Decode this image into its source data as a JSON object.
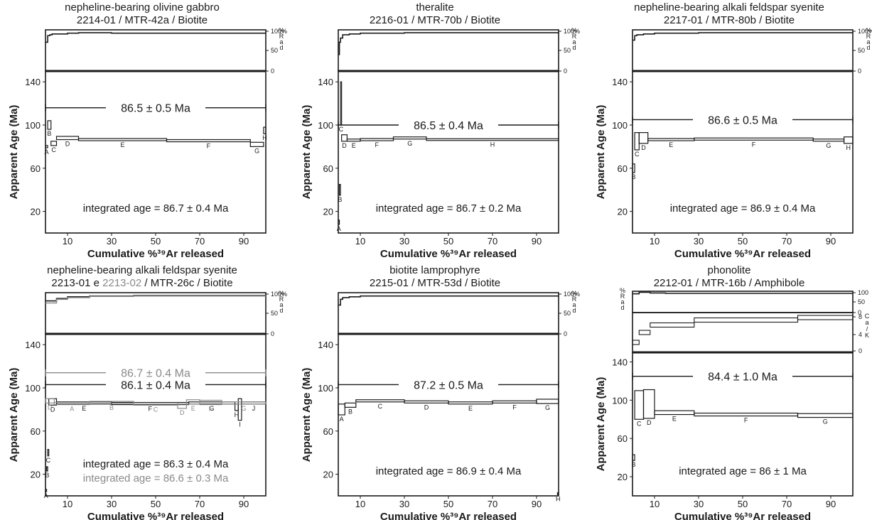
{
  "colors": {
    "primary": "#1a1a1a",
    "secondary": "#8a8a8a"
  },
  "chart_data": [
    {
      "type": "line",
      "title": "nepheline-bearing olivine gabbro",
      "subtitle": [
        "2214-01 / MTR-42a / Biotite"
      ],
      "xlabel": "Cumulative %³⁹Ar released",
      "ylabel": "Apparent Age (Ma)",
      "xlim": [
        0,
        100
      ],
      "ylim": [
        0,
        150
      ],
      "yticks": [
        20,
        60,
        100,
        140
      ],
      "xticks": [
        10,
        30,
        50,
        70,
        90
      ],
      "rad_axis": {
        "ticks": [
          "100%",
          "50",
          "0"
        ],
        "label": "%Rad",
        "letters": [
          "%",
          "R",
          "a",
          "d"
        ]
      },
      "rad_series": [
        {
          "x": [
            0,
            1,
            2,
            3,
            10,
            15,
            30,
            60,
            80,
            100
          ],
          "y": [
            70,
            86,
            88,
            90,
            92,
            93,
            92,
            92,
            92,
            92
          ]
        }
      ],
      "series": [
        {
          "name": "",
          "color": "primary",
          "steps": [
            {
              "x0": 0,
              "x1": 1,
              "age": 80,
              "err": 1,
              "label": "A"
            },
            {
              "x0": 1,
              "x1": 2.5,
              "age": 100,
              "err": 4,
              "label": "B"
            },
            {
              "x0": 2.5,
              "x1": 5,
              "age": 83,
              "err": 2,
              "label": "C"
            },
            {
              "x0": 5,
              "x1": 15,
              "age": 88,
              "err": 1.5,
              "label": "D"
            },
            {
              "x0": 15,
              "x1": 55,
              "age": 86.5,
              "err": 1,
              "label": "E"
            },
            {
              "x0": 55,
              "x1": 93,
              "age": 85.5,
              "err": 1,
              "label": "F"
            },
            {
              "x0": 93,
              "x1": 99,
              "age": 82,
              "err": 2,
              "label": "G"
            },
            {
              "x0": 99,
              "x1": 100,
              "age": 95,
              "err": 3,
              "label": "H"
            }
          ],
          "plateau": {
            "x0": 0,
            "x1": 100,
            "age": 116,
            "label": "86.5 ± 0.5  Ma"
          },
          "integrated": "integrated age = 86.7 ± 0.4  Ma"
        }
      ]
    },
    {
      "type": "line",
      "title": "theralite",
      "subtitle": [
        "2216-01 / MTR-70b / Biotite"
      ],
      "xlabel": "Cumulative %³⁹Ar released",
      "ylabel": "Apparent Age (Ma)",
      "xlim": [
        0,
        100
      ],
      "ylim": [
        0,
        150
      ],
      "yticks": [
        20,
        60,
        100,
        140
      ],
      "xticks": [
        10,
        30,
        50,
        70,
        90
      ],
      "rad_axis": {
        "ticks": [
          "100%",
          "50",
          "0"
        ],
        "label": "%Rad",
        "letters": [
          "%",
          "R",
          "a",
          "d"
        ]
      },
      "rad_series": [
        {
          "x": [
            0,
            0.5,
            1,
            2,
            5,
            10,
            30,
            60,
            100
          ],
          "y": [
            40,
            70,
            80,
            88,
            90,
            92,
            93,
            93,
            93
          ]
        }
      ],
      "series": [
        {
          "name": "",
          "color": "primary",
          "steps": [
            {
              "x0": 0,
              "x1": 0.5,
              "age": 10,
              "err": 2,
              "label": "A"
            },
            {
              "x0": 0.5,
              "x1": 1,
              "age": 40,
              "err": 5,
              "label": "B"
            },
            {
              "x0": 1,
              "x1": 1.5,
              "age": 120,
              "err": 20,
              "label": "C"
            },
            {
              "x0": 1.5,
              "x1": 4,
              "age": 88,
              "err": 3,
              "label": "D"
            },
            {
              "x0": 4,
              "x1": 10,
              "age": 86,
              "err": 1,
              "label": "E"
            },
            {
              "x0": 10,
              "x1": 25,
              "age": 86.5,
              "err": 1,
              "label": "F"
            },
            {
              "x0": 25,
              "x1": 40,
              "age": 88,
              "err": 1,
              "label": "G"
            },
            {
              "x0": 40,
              "x1": 100,
              "age": 86.5,
              "err": 0.8,
              "label": "H"
            }
          ],
          "plateau": {
            "x0": 0,
            "x1": 100,
            "age": 100,
            "label": "86.5 ± 0.4  Ma"
          },
          "integrated": "integrated age = 86.7 ± 0.2  Ma"
        }
      ]
    },
    {
      "type": "line",
      "title": "nepheline-bearing alkali feldspar syenite",
      "subtitle": [
        "2217-01 / MTR-80b / Biotite"
      ],
      "xlabel": "Cumulative %³⁹Ar released",
      "ylabel": "Apparent Age (Ma)",
      "xlim": [
        0,
        100
      ],
      "ylim": [
        0,
        150
      ],
      "yticks": [
        20,
        60,
        100,
        140
      ],
      "xticks": [
        10,
        30,
        50,
        70,
        90
      ],
      "rad_axis": {
        "ticks": [
          "100%",
          "50",
          "0"
        ],
        "label": "%Rad",
        "letters": [
          "%",
          "R",
          "a",
          "d"
        ]
      },
      "rad_series": [
        {
          "x": [
            0,
            1,
            2,
            5,
            10,
            30,
            60,
            100
          ],
          "y": [
            75,
            86,
            88,
            90,
            92,
            93,
            93,
            93
          ]
        }
      ],
      "series": [
        {
          "name": "",
          "color": "primary",
          "steps": [
            {
              "x0": 0,
              "x1": 1,
              "age": 60,
              "err": 4,
              "label": "B"
            },
            {
              "x0": 1,
              "x1": 3,
              "age": 85,
              "err": 8,
              "label": "C"
            },
            {
              "x0": 3,
              "x1": 7,
              "age": 88,
              "err": 5,
              "label": "D"
            },
            {
              "x0": 7,
              "x1": 28,
              "age": 86.5,
              "err": 1,
              "label": "E"
            },
            {
              "x0": 28,
              "x1": 82,
              "age": 87,
              "err": 1,
              "label": "F"
            },
            {
              "x0": 82,
              "x1": 96,
              "age": 86,
              "err": 1,
              "label": "G"
            },
            {
              "x0": 96,
              "x1": 100,
              "age": 86,
              "err": 3,
              "label": "H"
            }
          ],
          "plateau": {
            "x0": 0,
            "x1": 100,
            "age": 105,
            "label": "86.6 ± 0.5  Ma"
          },
          "integrated": "integrated age = 86.9 ± 0.4  Ma"
        }
      ]
    },
    {
      "type": "line",
      "title": "nepheline-bearing alkali feldspar syenite",
      "subtitle": [
        "2213-01 e ",
        "2213-02",
        " / MTR-26c / Biotite"
      ],
      "xlabel": "Cumulative %³⁹Ar released",
      "ylabel": "Apparent Age (Ma)",
      "xlim": [
        0,
        100
      ],
      "ylim": [
        0,
        150
      ],
      "yticks": [
        20,
        60,
        100,
        140
      ],
      "xticks": [
        10,
        30,
        50,
        70,
        90
      ],
      "rad_axis": {
        "ticks": [
          "100%",
          "50",
          "0"
        ],
        "label": "%Rad",
        "letters": [
          "%",
          "R",
          "a",
          "d"
        ]
      },
      "rad_series": [
        {
          "x": [
            0,
            5,
            10,
            20,
            40,
            70,
            100
          ],
          "y": [
            80,
            86,
            90,
            92,
            93,
            93,
            93
          ]
        },
        {
          "x": [
            0,
            5,
            10,
            20,
            40,
            70,
            100
          ],
          "y": [
            75,
            84,
            88,
            91,
            92,
            92,
            92
          ]
        }
      ],
      "series": [
        {
          "name": "",
          "color": "primary",
          "steps": [
            {
              "x0": 0,
              "x1": 0.5,
              "age": 5,
              "err": 1,
              "label": "A"
            },
            {
              "x0": 0.5,
              "x1": 1,
              "age": 25,
              "err": 2,
              "label": "B"
            },
            {
              "x0": 1,
              "x1": 1.5,
              "age": 40,
              "err": 3,
              "label": "C"
            },
            {
              "x0": 1.5,
              "x1": 5,
              "age": 87,
              "err": 3,
              "label": "D"
            },
            {
              "x0": 5,
              "x1": 30,
              "age": 86,
              "err": 1,
              "label": "E"
            },
            {
              "x0": 30,
              "x1": 65,
              "age": 85.5,
              "err": 1,
              "label": "F"
            },
            {
              "x0": 65,
              "x1": 86,
              "age": 86,
              "err": 1,
              "label": "G"
            },
            {
              "x0": 86,
              "x1": 87.5,
              "age": 82,
              "err": 3,
              "label": "H"
            },
            {
              "x0": 87.5,
              "x1": 89,
              "age": 80,
              "err": 10,
              "label": "I"
            },
            {
              "x0": 89,
              "x1": 100,
              "age": 86,
              "err": 1,
              "label": "J"
            }
          ],
          "plateau": {
            "x0": 0,
            "x1": 100,
            "age": 103,
            "label": "86.1 ± 0.4  Ma"
          },
          "integrated": "integrated age = 86.3 ± 0.4  Ma"
        },
        {
          "name": "",
          "color": "secondary",
          "steps": [
            {
              "x0": 0,
              "x1": 4,
              "age": 88,
              "err": 2,
              "label": "D"
            },
            {
              "x0": 4,
              "x1": 20,
              "age": 85.5,
              "err": 1,
              "label": "A"
            },
            {
              "x0": 20,
              "x1": 40,
              "age": 86.5,
              "err": 1,
              "label": "B"
            },
            {
              "x0": 40,
              "x1": 60,
              "age": 85,
              "err": 1,
              "label": "C"
            },
            {
              "x0": 60,
              "x1": 64,
              "age": 83,
              "err": 2,
              "label": "D"
            },
            {
              "x0": 64,
              "x1": 70,
              "age": 87,
              "err": 2,
              "label": "E"
            },
            {
              "x0": 70,
              "x1": 80,
              "age": 86.5,
              "err": 2,
              "label": "F"
            },
            {
              "x0": 80,
              "x1": 100,
              "age": 86,
              "err": 1,
              "label": "G"
            }
          ],
          "plateau": {
            "x0": 0,
            "x1": 100,
            "age": 114,
            "label": "86.7 ± 0.4  Ma"
          },
          "integrated": "integrated age = 86.6 ± 0.3  Ma"
        }
      ]
    },
    {
      "type": "line",
      "title": "biotite lamprophyre",
      "subtitle": [
        "2215-01 / MTR-53d / Biotite"
      ],
      "xlabel": "Cumulative %³⁹Ar released",
      "ylabel": "Apparent Age (Ma)",
      "xlim": [
        0,
        100
      ],
      "ylim": [
        0,
        150
      ],
      "yticks": [
        20,
        60,
        100,
        140
      ],
      "xticks": [
        10,
        30,
        50,
        70,
        90
      ],
      "rad_axis": {
        "ticks": [
          "100%",
          "50",
          "0"
        ],
        "label": "%Rad",
        "letters": [
          "%",
          "R",
          "a",
          "d"
        ]
      },
      "rad_series": [
        {
          "x": [
            0,
            1,
            2,
            5,
            10,
            30,
            60,
            100
          ],
          "y": [
            70,
            84,
            88,
            90,
            92,
            92,
            92,
            92
          ]
        }
      ],
      "series": [
        {
          "name": "",
          "color": "primary",
          "steps": [
            {
              "x0": 0,
              "x1": 3,
              "age": 80,
              "err": 5,
              "label": "A"
            },
            {
              "x0": 3,
              "x1": 8,
              "age": 84,
              "err": 2,
              "label": "B"
            },
            {
              "x0": 8,
              "x1": 30,
              "age": 88,
              "err": 1,
              "label": "C"
            },
            {
              "x0": 30,
              "x1": 50,
              "age": 87,
              "err": 1,
              "label": "D"
            },
            {
              "x0": 50,
              "x1": 70,
              "age": 86,
              "err": 1,
              "label": "E"
            },
            {
              "x0": 70,
              "x1": 90,
              "age": 87,
              "err": 1,
              "label": "F"
            },
            {
              "x0": 90,
              "x1": 100,
              "age": 87.5,
              "err": 2,
              "label": "G"
            },
            {
              "x0": 99.5,
              "x1": 100,
              "age": 2,
              "err": 1,
              "label": "H"
            }
          ],
          "plateau": {
            "x0": 0,
            "x1": 100,
            "age": 103,
            "label": "87.2 ± 0.5  Ma"
          },
          "integrated": "integrated age  = 86.9 ± 0.4  Ma"
        }
      ]
    },
    {
      "type": "line",
      "title": "phonolite",
      "subtitle": [
        "2212-01 / MTR-16b / Amphibole"
      ],
      "xlabel": "Cumulative %³⁹Ar released",
      "ylabel": "Apparent Age (Ma)",
      "xlim": [
        0,
        100
      ],
      "ylim": [
        0,
        150
      ],
      "yticks": [
        20,
        60,
        100,
        140
      ],
      "xticks": [
        10,
        30,
        50,
        70,
        90
      ],
      "rad_axis": {
        "ticks": [
          "100",
          "50",
          "0"
        ],
        "label": "%Rad",
        "letters": [
          "%",
          "R",
          "a",
          "d"
        ]
      },
      "rad_series": [
        {
          "x": [
            0,
            3,
            8,
            15,
            30,
            60,
            100
          ],
          "y": [
            88,
            95,
            92,
            90,
            90,
            90,
            90
          ]
        }
      ],
      "cak_axis": {
        "ticks": [
          "8",
          "4",
          "0"
        ],
        "label": "Ca/K",
        "letters": [
          "C",
          "a",
          "/",
          "K"
        ]
      },
      "cak_steps": [
        {
          "x0": 0,
          "x1": 3,
          "value": 2
        },
        {
          "x0": 3,
          "x1": 8,
          "value": 4
        },
        {
          "x0": 8,
          "x1": 28,
          "value": 5.5
        },
        {
          "x0": 28,
          "x1": 75,
          "value": 6.5
        },
        {
          "x0": 75,
          "x1": 100,
          "value": 7
        }
      ],
      "series": [
        {
          "name": "",
          "color": "primary",
          "steps": [
            {
              "x0": 0,
              "x1": 1,
              "age": 40,
              "err": 3,
              "label": "B"
            },
            {
              "x0": 1,
              "x1": 5,
              "age": 95,
              "err": 15,
              "label": "C"
            },
            {
              "x0": 5,
              "x1": 10,
              "age": 96,
              "err": 15,
              "label": "D"
            },
            {
              "x0": 10,
              "x1": 28,
              "age": 87,
              "err": 2,
              "label": "E"
            },
            {
              "x0": 28,
              "x1": 75,
              "age": 85,
              "err": 1.5,
              "label": "F"
            },
            {
              "x0": 75,
              "x1": 100,
              "age": 84,
              "err": 2,
              "label": "G"
            }
          ],
          "plateau": {
            "x0": 0,
            "x1": 100,
            "age": 125,
            "label": "84.4 ± 1.0  Ma"
          },
          "integrated": "integrated age = 86 ± 1  Ma"
        }
      ]
    }
  ]
}
